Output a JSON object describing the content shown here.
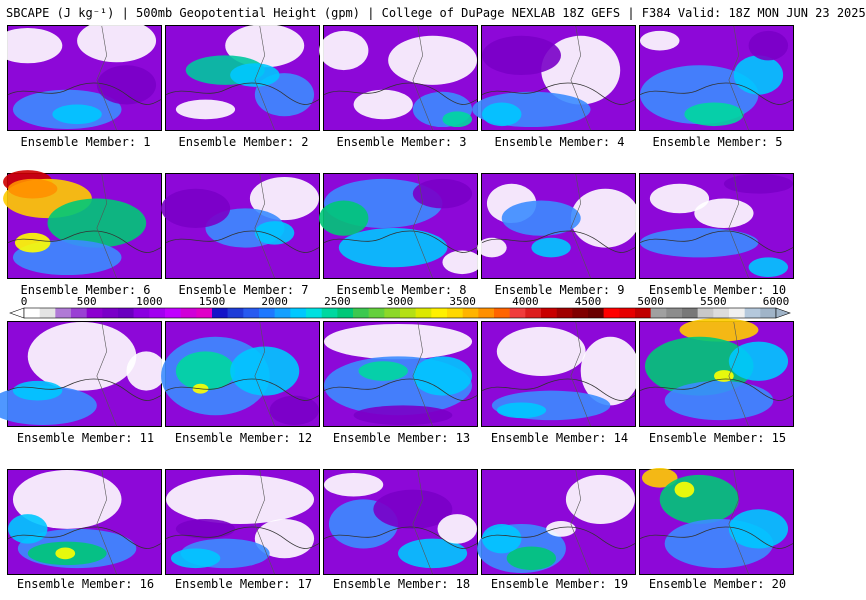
{
  "header": {
    "title": "SBCAPE (J kg⁻¹) | 500mb Geopotential Height (gpm) | College of DuPage NEXLAB 18Z GEFS | F384 Valid: 18Z MON JUN 23 2025"
  },
  "colorbar": {
    "ticks": [
      "0",
      "500",
      "1000",
      "1500",
      "2000",
      "2500",
      "3000",
      "3500",
      "4000",
      "4500",
      "5000",
      "5500",
      "6000"
    ],
    "colors": [
      "#ffffff",
      "#e4e4e4",
      "#b07ad6",
      "#9a40d4",
      "#8c00d0",
      "#7a00c8",
      "#6a00c0",
      "#8a00e0",
      "#a200f0",
      "#c000ff",
      "#d000d8",
      "#e000c8",
      "#1414c8",
      "#1e3cd8",
      "#285af0",
      "#1e78ff",
      "#14a0ff",
      "#00c8ff",
      "#00e0e0",
      "#00d8a0",
      "#00c878",
      "#3cc850",
      "#64d03c",
      "#8cd828",
      "#b4e014",
      "#dce800",
      "#fff000",
      "#ffd800",
      "#ffb400",
      "#ff9000",
      "#ff6400",
      "#f03c3c",
      "#dc1e1e",
      "#c80000",
      "#a00000",
      "#800000",
      "#6a0000",
      "#ff0000",
      "#e60000",
      "#c00000",
      "#a0a0a0",
      "#8c8c8c",
      "#787878",
      "#c8c8c8",
      "#dcdcdc",
      "#f0f0f0",
      "#b4c8dc",
      "#a0b4c8"
    ]
  },
  "panels": [
    {
      "label": "Ensemble Member: 1"
    },
    {
      "label": "Ensemble Member: 2"
    },
    {
      "label": "Ensemble Member: 3"
    },
    {
      "label": "Ensemble Member: 4"
    },
    {
      "label": "Ensemble Member: 5"
    },
    {
      "label": "Ensemble Member: 6"
    },
    {
      "label": "Ensemble Member: 7"
    },
    {
      "label": "Ensemble Member: 8"
    },
    {
      "label": "Ensemble Member: 9"
    },
    {
      "label": "Ensemble Member: 10"
    },
    {
      "label": "Ensemble Member: 11"
    },
    {
      "label": "Ensemble Member: 12"
    },
    {
      "label": "Ensemble Member: 13"
    },
    {
      "label": "Ensemble Member: 14"
    },
    {
      "label": "Ensemble Member: 15"
    },
    {
      "label": "Ensemble Member: 16"
    },
    {
      "label": "Ensemble Member: 17"
    },
    {
      "label": "Ensemble Member: 18"
    },
    {
      "label": "Ensemble Member: 19"
    },
    {
      "label": "Ensemble Member: 20"
    }
  ]
}
